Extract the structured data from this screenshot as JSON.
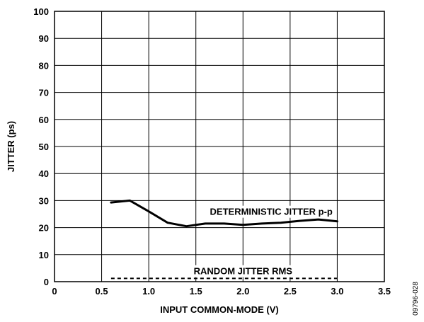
{
  "chart_data": {
    "type": "line",
    "title": "",
    "xlabel": "INPUT COMMON-MODE (V)",
    "ylabel": "JITTER (ps)",
    "xlim": [
      0,
      3.5
    ],
    "ylim": [
      0,
      100
    ],
    "xticks": [
      0,
      0.5,
      1.0,
      1.5,
      2.0,
      2.5,
      3.0,
      3.5
    ],
    "xtick_labels": [
      "0",
      "0.5",
      "1.0",
      "1.5",
      "2.0",
      "2.5",
      "3.0",
      "3.5"
    ],
    "yticks": [
      0,
      10,
      20,
      30,
      40,
      50,
      60,
      70,
      80,
      90,
      100
    ],
    "ytick_labels": [
      "0",
      "10",
      "20",
      "30",
      "40",
      "50",
      "60",
      "70",
      "80",
      "90",
      "100"
    ],
    "grid": true,
    "series": [
      {
        "name": "DETERMINISTIC JITTER p-p",
        "style": "solid",
        "color": "#000000",
        "x": [
          0.6,
          0.8,
          1.0,
          1.2,
          1.4,
          1.6,
          1.8,
          2.0,
          2.2,
          2.4,
          2.6,
          2.8,
          3.0
        ],
        "y": [
          29.3,
          30.0,
          26.0,
          21.8,
          20.5,
          21.5,
          21.5,
          21.0,
          21.5,
          21.8,
          22.5,
          23.0,
          22.3
        ]
      },
      {
        "name": "RANDOM JITTER RMS",
        "style": "dashed",
        "color": "#000000",
        "x": [
          0.6,
          0.8,
          1.0,
          1.2,
          1.4,
          1.6,
          1.8,
          2.0,
          2.2,
          2.4,
          2.6,
          2.8,
          3.0
        ],
        "y": [
          1.2,
          1.2,
          1.2,
          1.2,
          1.2,
          1.2,
          1.2,
          1.2,
          1.2,
          1.2,
          1.2,
          1.2,
          1.2
        ]
      }
    ],
    "annotations": [
      {
        "text": "DETERMINISTIC JITTER p-p",
        "x": 2.3,
        "y": 26
      },
      {
        "text": "RANDOM JITTER RMS",
        "x": 2.0,
        "y": 4.0
      }
    ],
    "figure_id": "09796-028"
  }
}
